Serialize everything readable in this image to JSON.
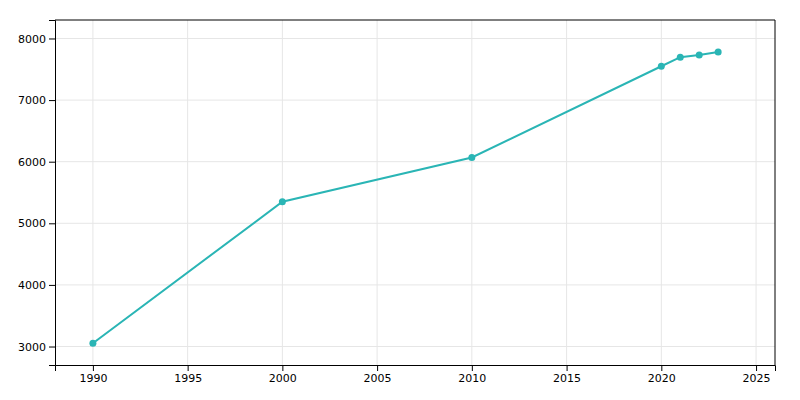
{
  "chart_data": {
    "type": "line",
    "x": [
      1990,
      2000,
      2010,
      2020,
      2021,
      2022,
      2023
    ],
    "values": [
      3054,
      5350,
      6068,
      7549,
      7697,
      7731,
      7780
    ],
    "color": "#2ab5b5",
    "marker": "circle",
    "xlim": [
      1988,
      2026
    ],
    "ylim": [
      2700,
      8300
    ],
    "xticks": [
      1990,
      1995,
      2000,
      2005,
      2010,
      2015,
      2020,
      2025
    ],
    "yticks": [
      3000,
      4000,
      5000,
      6000,
      7000,
      8000
    ],
    "grid": true
  }
}
